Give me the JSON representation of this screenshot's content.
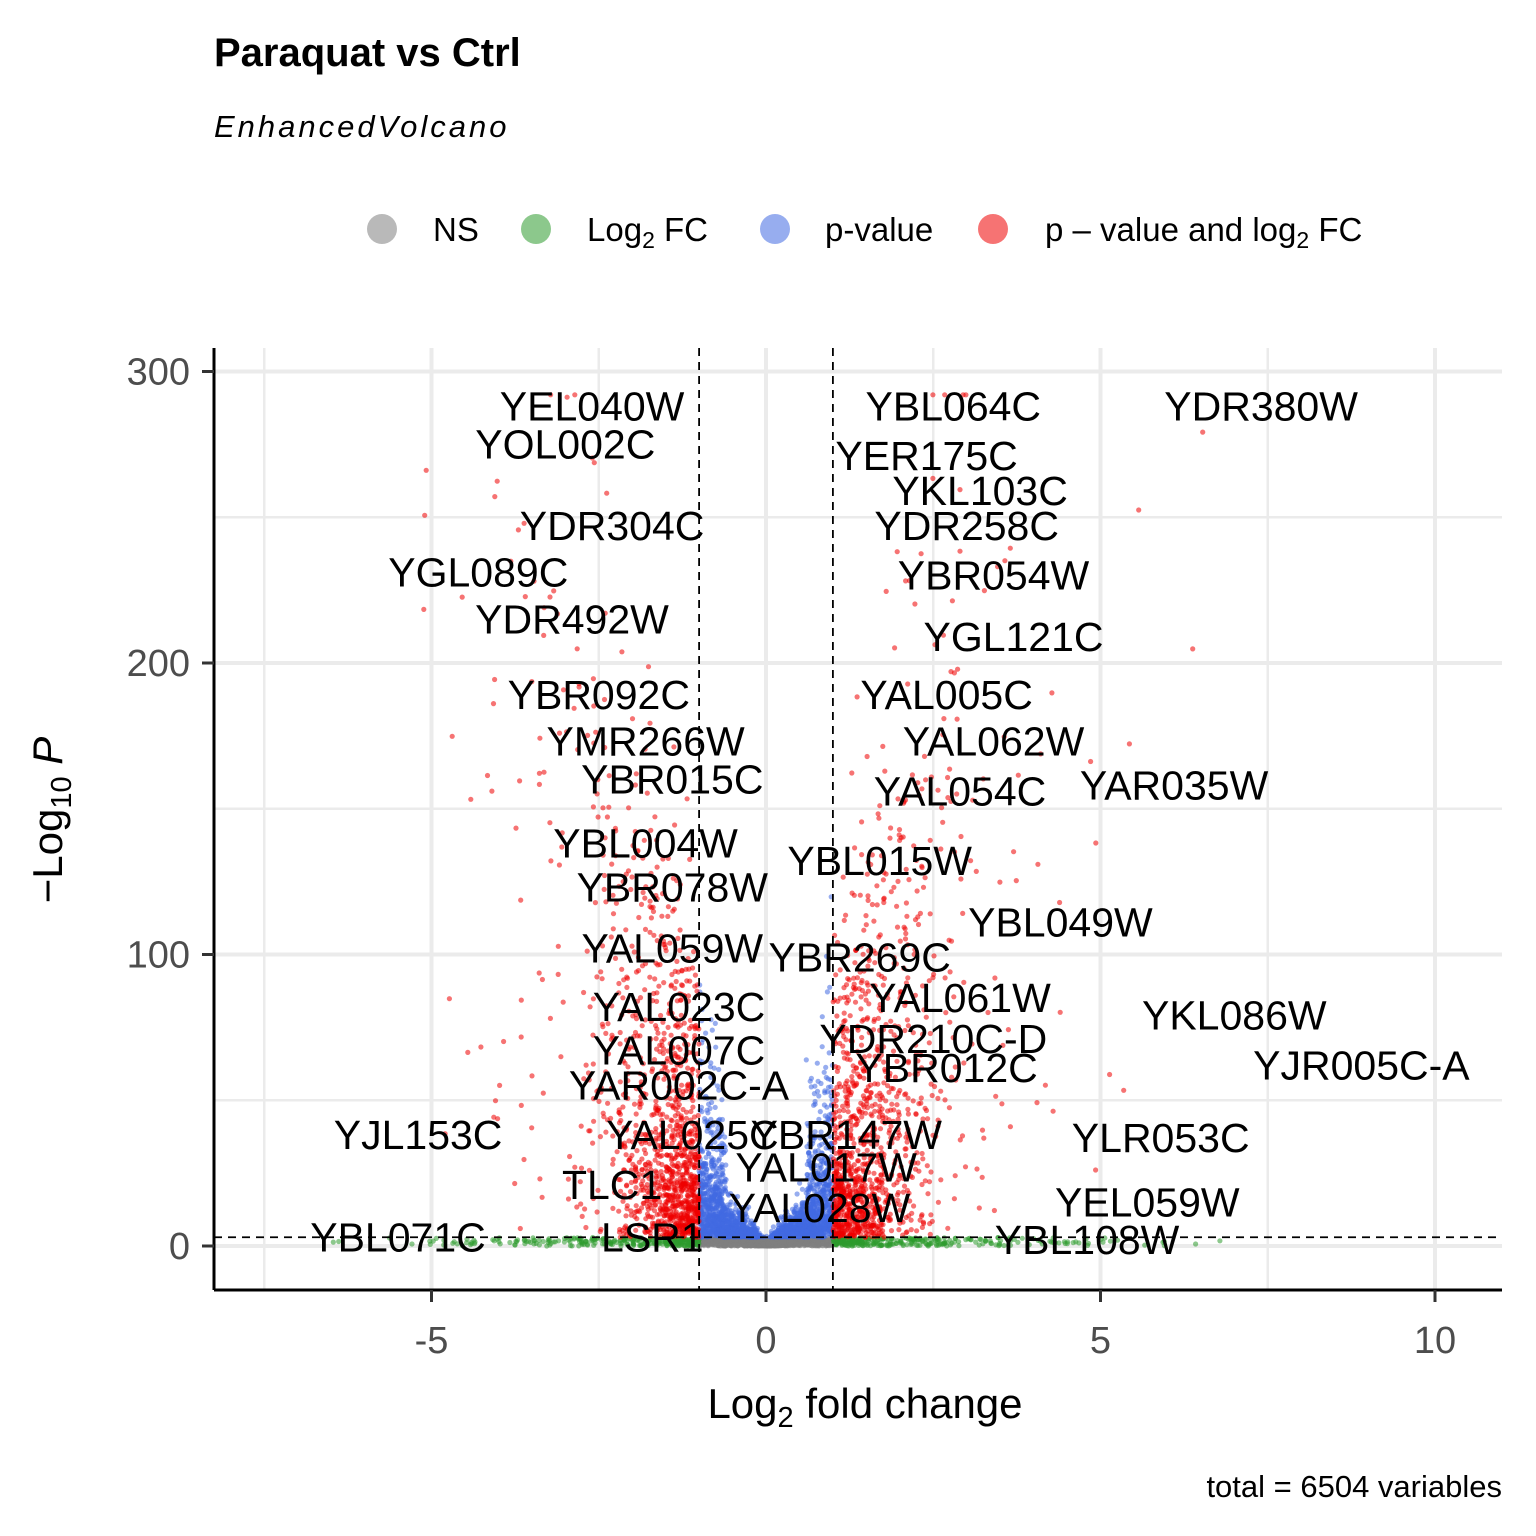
{
  "chart_data": {
    "type": "scatter",
    "title": "Paraquat vs Ctrl",
    "subtitle": "EnhancedVolcano",
    "xlabel": "Log2 fold change",
    "ylabel": "-Log10 P",
    "caption": "total = 6504 variables",
    "xlim": [
      -8,
      11
    ],
    "ylim": [
      -15,
      310
    ],
    "x_ticks": [
      "-5",
      "0",
      "5",
      "10"
    ],
    "x_tick_values": [
      -5,
      0,
      5,
      10
    ],
    "y_ticks": [
      "0",
      "100",
      "200",
      "300"
    ],
    "y_tick_values": [
      0,
      100,
      200,
      300
    ],
    "grid": true,
    "legend_position": "top",
    "fc_cutoff": 1,
    "p_cutoff_log10": 3,
    "legend": [
      {
        "key": "NS",
        "label": "NS",
        "color": "#7f7f7f"
      },
      {
        "key": "FC",
        "label": "Log",
        "sub": "2",
        "suffix": " FC",
        "color": "#2e9b2e"
      },
      {
        "key": "P",
        "label": "p-value",
        "color": "#4169e1"
      },
      {
        "key": "PFC",
        "label": "p – value and log",
        "sub": "2",
        "suffix": " FC",
        "color": "#ee0000"
      }
    ],
    "total_points": 6504,
    "labels": [
      {
        "text": "YEL040W",
        "x": -2.6,
        "y": 288
      },
      {
        "text": "YOL002C",
        "x": -3.0,
        "y": 275
      },
      {
        "text": "YDR304C",
        "x": -2.3,
        "y": 247
      },
      {
        "text": "YGL089C",
        "x": -4.3,
        "y": 231
      },
      {
        "text": "YDR492W",
        "x": -2.9,
        "y": 215
      },
      {
        "text": "YBR092C",
        "x": -2.5,
        "y": 189
      },
      {
        "text": "YMR266W",
        "x": -1.8,
        "y": 173
      },
      {
        "text": "YBR015C",
        "x": -1.4,
        "y": 160
      },
      {
        "text": "YBL004W",
        "x": -1.8,
        "y": 138
      },
      {
        "text": "YBR078W",
        "x": -1.4,
        "y": 123
      },
      {
        "text": "YAL059W",
        "x": -1.4,
        "y": 102
      },
      {
        "text": "YAL023C",
        "x": -1.3,
        "y": 82
      },
      {
        "text": "YAL007C",
        "x": -1.3,
        "y": 67
      },
      {
        "text": "YAR002C-A",
        "x": -1.3,
        "y": 55
      },
      {
        "text": "YJL153C",
        "x": -5.2,
        "y": 38
      },
      {
        "text": "YAL025C",
        "x": -1.1,
        "y": 38
      },
      {
        "text": "TLC1",
        "x": -2.3,
        "y": 21
      },
      {
        "text": "YBL071C",
        "x": -5.5,
        "y": 3
      },
      {
        "text": "LSR1",
        "x": -1.7,
        "y": 3
      },
      {
        "text": "YBL064C",
        "x": 2.8,
        "y": 288
      },
      {
        "text": "YDR380W",
        "x": 7.4,
        "y": 288
      },
      {
        "text": "YER175C",
        "x": 2.4,
        "y": 271
      },
      {
        "text": "YKL103C",
        "x": 3.2,
        "y": 259
      },
      {
        "text": "YDR258C",
        "x": 3.0,
        "y": 247
      },
      {
        "text": "YBR054W",
        "x": 3.4,
        "y": 230
      },
      {
        "text": "YGL121C",
        "x": 3.7,
        "y": 209
      },
      {
        "text": "YAL005C",
        "x": 2.7,
        "y": 189
      },
      {
        "text": "YAL062W",
        "x": 3.4,
        "y": 173
      },
      {
        "text": "YAL054C",
        "x": 2.9,
        "y": 156
      },
      {
        "text": "YAR035W",
        "x": 6.1,
        "y": 158
      },
      {
        "text": "YBL015W",
        "x": 1.7,
        "y": 132
      },
      {
        "text": "YBL049W",
        "x": 4.4,
        "y": 111
      },
      {
        "text": "YBR269C",
        "x": 1.4,
        "y": 99
      },
      {
        "text": "YAL061W",
        "x": 2.9,
        "y": 85
      },
      {
        "text": "YKL086W",
        "x": 7.0,
        "y": 79
      },
      {
        "text": "YDR210C-D",
        "x": 2.5,
        "y": 71
      },
      {
        "text": "YJR005C-A",
        "x": 8.9,
        "y": 62
      },
      {
        "text": "YBR012C",
        "x": 2.7,
        "y": 61
      },
      {
        "text": "YBR147W",
        "x": 1.2,
        "y": 38
      },
      {
        "text": "YLR053C",
        "x": 5.9,
        "y": 37
      },
      {
        "text": "YAL017W",
        "x": 0.9,
        "y": 27
      },
      {
        "text": "YEL059W",
        "x": 5.7,
        "y": 15
      },
      {
        "text": "YAL028W",
        "x": 0.8,
        "y": 13
      },
      {
        "text": "YBL108W",
        "x": 4.8,
        "y": 2
      }
    ]
  }
}
